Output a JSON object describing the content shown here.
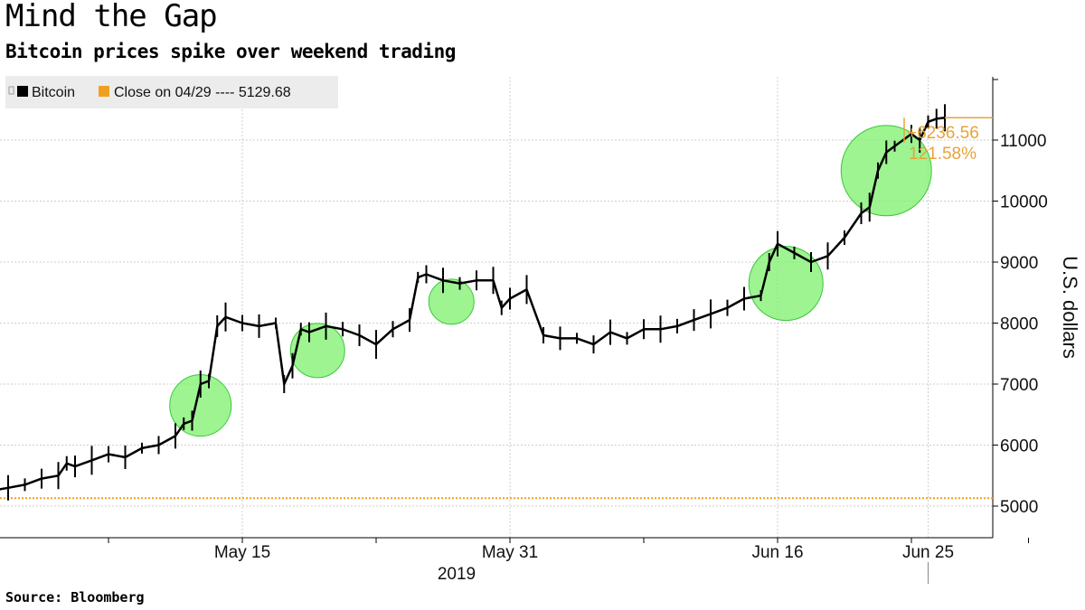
{
  "header": {
    "title": "Mind the Gap",
    "subtitle": "Bitcoin prices spike over weekend trading"
  },
  "footer": {
    "source": "Source: Bloomberg"
  },
  "colors": {
    "price": "#000000",
    "close_line": "#f0a020",
    "highlight_fill": "#7cf06c",
    "highlight_stroke": "#3ac83a",
    "annotation": "#e8a33a"
  },
  "chart_data": {
    "type": "line",
    "title": "Mind the Gap",
    "subtitle": "Bitcoin prices spike over weekend trading",
    "xlabel": "2019",
    "ylabel": "U.S. dollars",
    "ylim": [
      4500,
      12000
    ],
    "yticks": [
      5000,
      6000,
      7000,
      8000,
      9000,
      10000,
      11000
    ],
    "ytick_labels": [
      "5000",
      "6000",
      "7000",
      "8000",
      "9000",
      "10000",
      "11000"
    ],
    "xticks": [
      {
        "label": "May 15",
        "day": 15
      },
      {
        "label": "May 31",
        "day": 31
      },
      {
        "label": "Jun 16",
        "day": 47
      },
      {
        "label": "Jun 25",
        "day": 56
      }
    ],
    "year_label": "2019",
    "x_range_days": [
      -1,
      62
    ],
    "grid": true,
    "legend_position": "top-left",
    "legend": [
      {
        "label": "Bitcoin",
        "color": "#000000"
      },
      {
        "label": "Close on 04/29 ---- 5129.68",
        "color": "#f0a020"
      }
    ],
    "reference_line": {
      "label": "Close on 04/29",
      "value": 5129.68
    },
    "annotations": {
      "change": "+6236.56",
      "pct": "121.58%"
    },
    "series": [
      {
        "name": "Bitcoin",
        "days": [
          -1,
          0,
          1,
          2,
          3,
          4,
          4.5,
          5,
          6,
          7,
          8,
          9,
          10,
          11,
          11.5,
          12,
          12.5,
          13,
          13.5,
          14,
          15,
          16,
          17,
          17.5,
          18,
          18.5,
          19,
          20,
          21,
          22,
          23,
          24,
          25,
          25.5,
          26,
          27,
          28,
          29,
          30,
          30.5,
          31,
          32,
          33,
          34,
          35,
          36,
          37,
          38,
          39,
          40,
          41,
          42,
          43,
          44,
          45,
          46,
          46.5,
          47,
          48,
          49,
          50,
          51,
          52,
          52.5,
          53,
          53.5,
          54,
          55,
          55.5,
          56,
          56.5,
          57
        ],
        "values": [
          5100,
          5250,
          5300,
          5350,
          5450,
          5500,
          5700,
          5650,
          5750,
          5850,
          5800,
          5950,
          6000,
          6150,
          6350,
          6400,
          7000,
          7050,
          7950,
          8100,
          8000,
          7950,
          8000,
          7000,
          7300,
          7900,
          7850,
          7950,
          7900,
          7800,
          7650,
          7900,
          8050,
          8750,
          8800,
          8700,
          8650,
          8700,
          8700,
          8250,
          8400,
          8550,
          7800,
          7750,
          7750,
          7650,
          7850,
          7750,
          7900,
          7900,
          7950,
          8050,
          8150,
          8250,
          8400,
          8450,
          9000,
          9300,
          9150,
          9000,
          9100,
          9400,
          9800,
          9900,
          10500,
          10800,
          10900,
          11100,
          11000,
          11300,
          11350,
          11366
        ]
      }
    ],
    "highlighted_gaps": [
      {
        "day": 12.5,
        "value": 6650
      },
      {
        "day": 19.5,
        "value": 7550
      },
      {
        "day": 27.5,
        "value": 8350
      },
      {
        "day": 47.5,
        "value": 8650
      },
      {
        "day": 53.5,
        "value": 10500
      }
    ]
  }
}
